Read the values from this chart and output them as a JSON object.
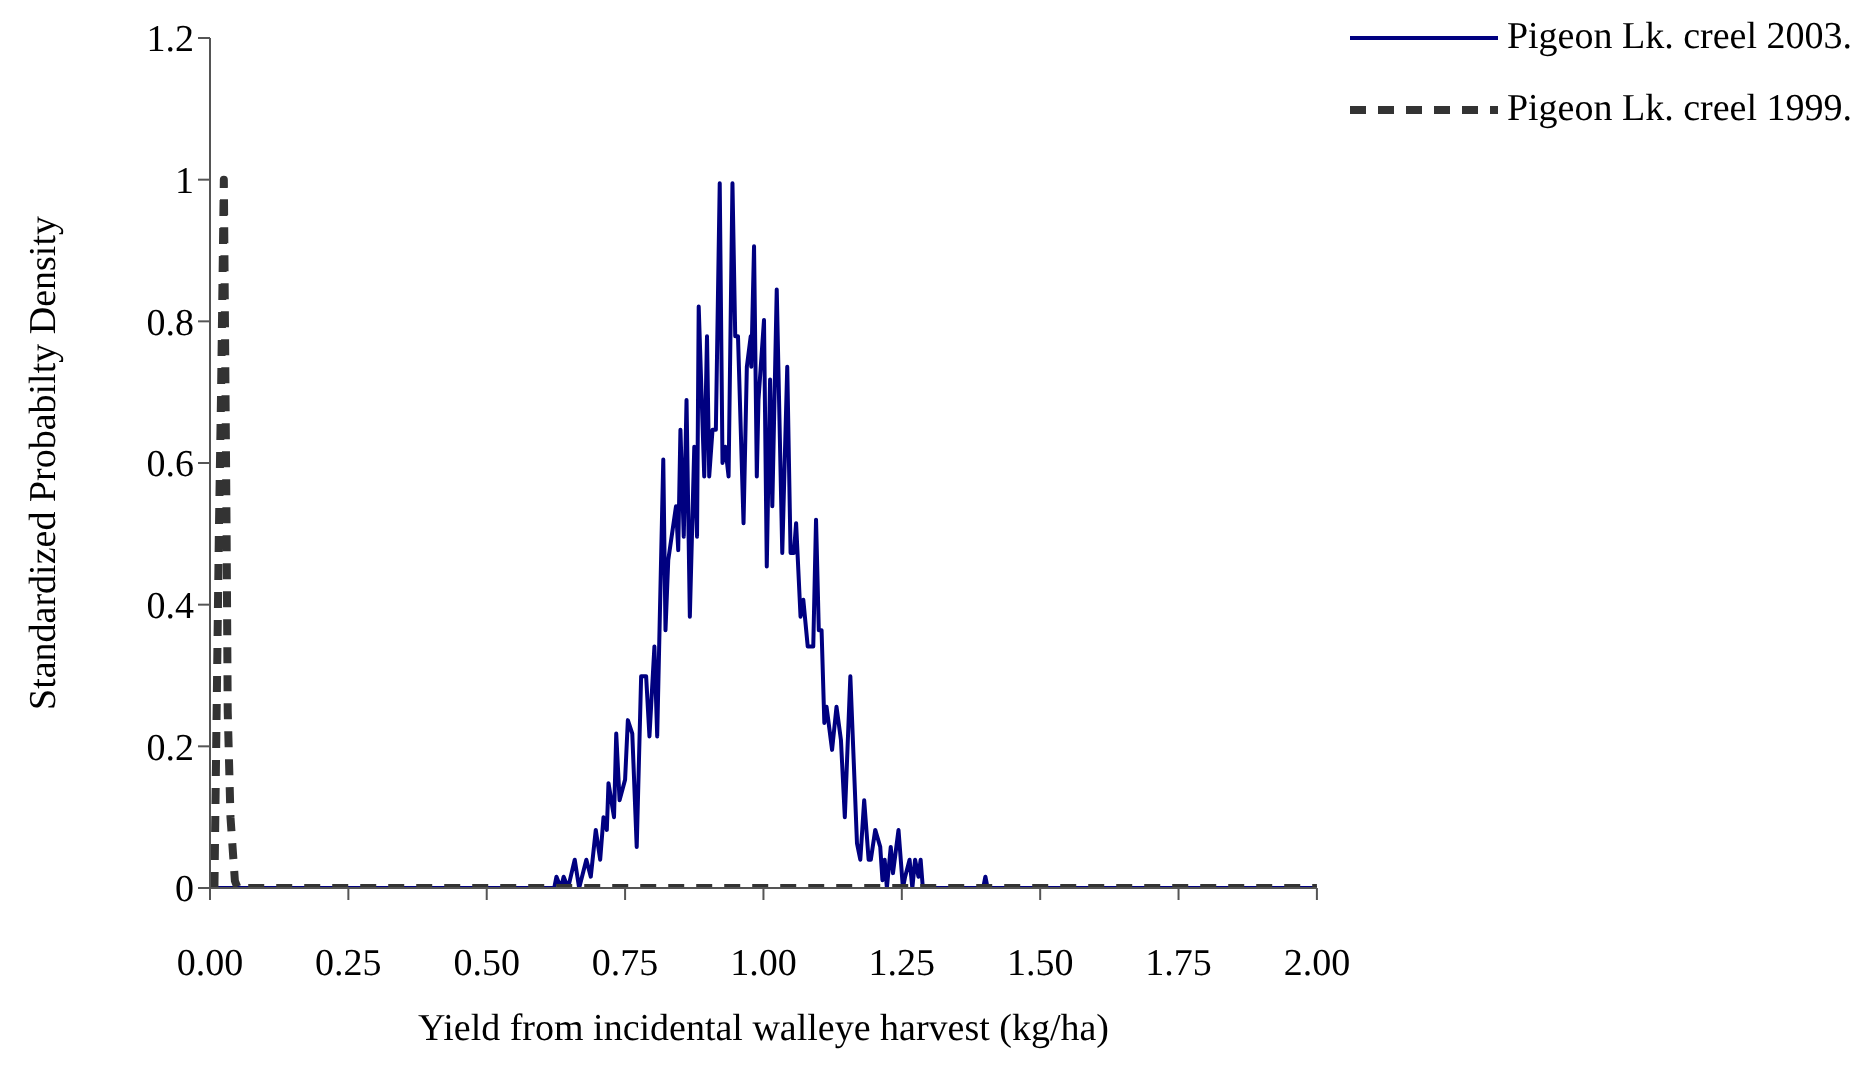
{
  "chart_data": {
    "type": "line",
    "xlabel": "Yield from incidental walleye harvest (kg/ha)",
    "ylabel": "Standardized Probabilty Density",
    "xlim": [
      0,
      2
    ],
    "xticks": [
      {
        "value": 0,
        "label": "0.00"
      },
      {
        "value": 0.25,
        "label": "0.25"
      },
      {
        "value": 0.5,
        "label": "0.50"
      },
      {
        "value": 0.75,
        "label": "0.75"
      },
      {
        "value": 1,
        "label": "1.00"
      },
      {
        "value": 1.25,
        "label": "1.25"
      },
      {
        "value": 1.5,
        "label": "1.50"
      },
      {
        "value": 1.75,
        "label": "1.75"
      },
      {
        "value": 2,
        "label": "2.00"
      }
    ],
    "ylim": [
      0,
      1.2
    ],
    "yticks": [
      0,
      0.2,
      0.4,
      0.6,
      0.8,
      1,
      1.2
    ],
    "grid": false,
    "legend": "top right",
    "marker": "none",
    "series": [
      {
        "name": "Pigeon Lk. creel 2003.",
        "color": "#000080",
        "line_style": "solid",
        "x": [
          0,
          0.622,
          0.626,
          0.634,
          0.639,
          0.647,
          0.659,
          0.667,
          0.68,
          0.688,
          0.697,
          0.705,
          0.711,
          0.717,
          0.72,
          0.73,
          0.734,
          0.74,
          0.75,
          0.755,
          0.763,
          0.771,
          0.779,
          0.788,
          0.794,
          0.803,
          0.808,
          0.819,
          0.823,
          0.828,
          0.842,
          0.846,
          0.85,
          0.856,
          0.861,
          0.867,
          0.875,
          0.88,
          0.883,
          0.893,
          0.898,
          0.902,
          0.908,
          0.914,
          0.921,
          0.926,
          0.931,
          0.937,
          0.944,
          0.949,
          0.954,
          0.964,
          0.97,
          0.977,
          0.978,
          0.983,
          0.988,
          0.991,
          1.001,
          1.006,
          1.012,
          1.016,
          1.024,
          1.034,
          1.043,
          1.049,
          1.055,
          1.059,
          1.067,
          1.072,
          1.08,
          1.09,
          1.095,
          1.1,
          1.105,
          1.11,
          1.114,
          1.124,
          1.132,
          1.14,
          1.147,
          1.157,
          1.169,
          1.175,
          1.182,
          1.19,
          1.194,
          1.202,
          1.211,
          1.215,
          1.219,
          1.223,
          1.23,
          1.234,
          1.244,
          1.252,
          1.256,
          1.264,
          1.269,
          1.274,
          1.28,
          1.284,
          1.288,
          1.397,
          1.401,
          1.405,
          2
        ],
        "values": [
          0,
          0,
          0.016,
          0,
          0.016,
          0,
          0.04,
          0,
          0.04,
          0.016,
          0.082,
          0.04,
          0.1,
          0.082,
          0.148,
          0.1,
          0.218,
          0.124,
          0.153,
          0.237,
          0.218,
          0.058,
          0.299,
          0.299,
          0.214,
          0.341,
          0.214,
          0.605,
          0.364,
          0.463,
          0.539,
          0.477,
          0.647,
          0.496,
          0.689,
          0.383,
          0.623,
          0.496,
          0.821,
          0.581,
          0.779,
          0.581,
          0.647,
          0.647,
          0.995,
          0.6,
          0.623,
          0.581,
          0.995,
          0.779,
          0.779,
          0.515,
          0.736,
          0.779,
          0.736,
          0.906,
          0.581,
          0.689,
          0.802,
          0.454,
          0.718,
          0.539,
          0.845,
          0.473,
          0.736,
          0.473,
          0.473,
          0.515,
          0.383,
          0.407,
          0.341,
          0.341,
          0.52,
          0.364,
          0.364,
          0.233,
          0.256,
          0.195,
          0.256,
          0.209,
          0.1,
          0.299,
          0.063,
          0.04,
          0.124,
          0.04,
          0.04,
          0.082,
          0.058,
          0.011,
          0.04,
          0,
          0.058,
          0.021,
          0.082,
          0,
          0.016,
          0.04,
          0,
          0.04,
          0.016,
          0.04,
          0,
          0,
          0.016,
          0,
          0
        ]
      },
      {
        "name": "Pigeon Lk. creel 1999.",
        "color": "#333333",
        "line_style": "dashed",
        "x": [
          0.008,
          0.012,
          0.016,
          0.02,
          0.025,
          0.027,
          0.03,
          0.032,
          0.037,
          0.045,
          0.05,
          2
        ],
        "values": [
          0,
          0.25,
          0.5,
          0.7,
          1,
          0.8,
          0.5,
          0.25,
          0.1,
          0.01,
          0,
          0
        ]
      }
    ]
  }
}
